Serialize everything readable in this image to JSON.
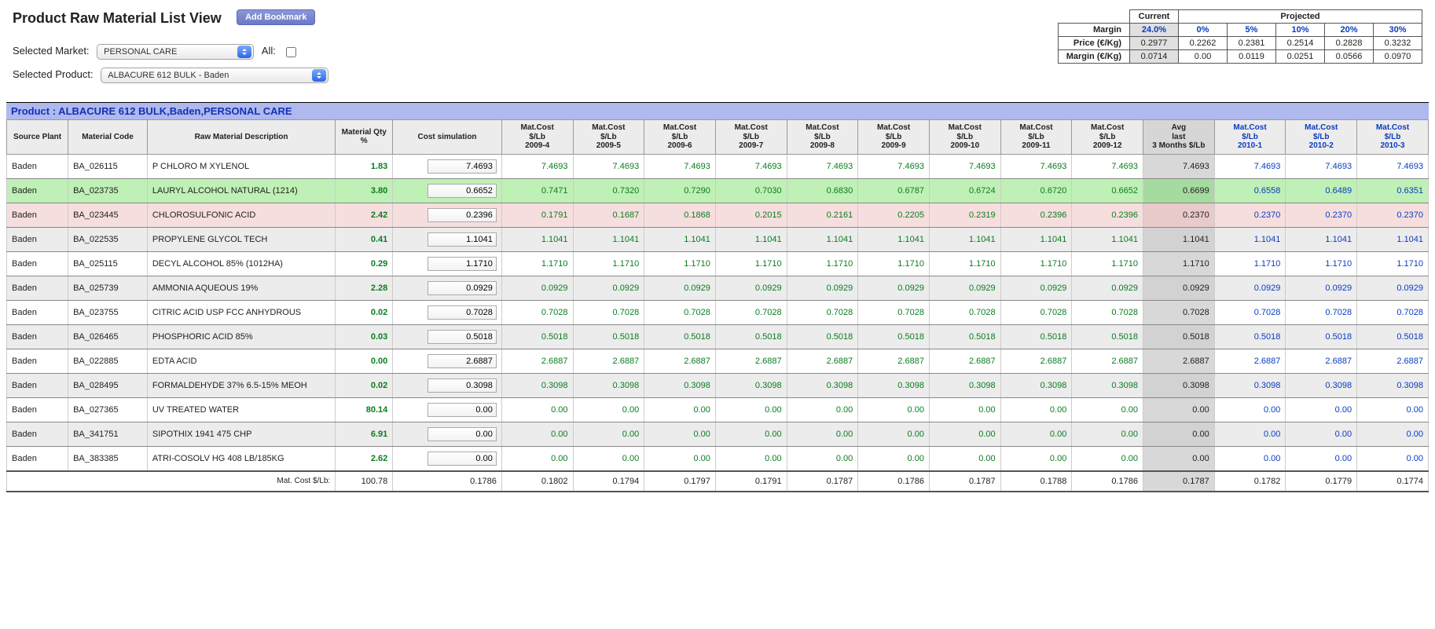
{
  "header": {
    "title": "Product Raw Material List View",
    "bookmark_label": "Add Bookmark",
    "market_label": "Selected Market:",
    "market_value": "PERSONAL CARE",
    "all_label": "All:",
    "all_checked": false,
    "product_label": "Selected Product:",
    "product_value": "ALBACURE 612 BULK - Baden"
  },
  "margin_table": {
    "current_label": "Current",
    "projected_label": "Projected",
    "rows": {
      "margin": {
        "label": "Margin",
        "current": "24.0%",
        "p0": "0%",
        "p5": "5%",
        "p10": "10%",
        "p20": "20%",
        "p30": "30%"
      },
      "price": {
        "label": "Price (€/Kg)",
        "current": "0.2977",
        "p0": "0.2262",
        "p5": "0.2381",
        "p10": "0.2514",
        "p20": "0.2828",
        "p30": "0.3232"
      },
      "margin_eur": {
        "label": "Margin (€/Kg)",
        "current": "0.0714",
        "p0": "0.00",
        "p5": "0.0119",
        "p10": "0.0251",
        "p20": "0.0566",
        "p30": "0.0970"
      }
    }
  },
  "product_banner": "Product : ALBACURE 612 BULK,Baden,PERSONAL CARE",
  "columns": {
    "plant": "Source Plant",
    "code": "Material Code",
    "desc": "Raw Material Description",
    "qty": "Material Qty %",
    "sim": "Cost simulation",
    "months": [
      "Mat.Cost $/Lb 2009-4",
      "Mat.Cost $/Lb 2009-5",
      "Mat.Cost $/Lb 2009-6",
      "Mat.Cost $/Lb 2009-7",
      "Mat.Cost $/Lb 2009-8",
      "Mat.Cost $/Lb 2009-9",
      "Mat.Cost $/Lb 2009-10",
      "Mat.Cost $/Lb 2009-11",
      "Mat.Cost $/Lb 2009-12"
    ],
    "avg": "Avg last 3 Months $/Lb",
    "future": [
      "Mat.Cost $/Lb 2010-1",
      "Mat.Cost $/Lb 2010-2",
      "Mat.Cost $/Lb 2010-3"
    ]
  },
  "rows": [
    {
      "plant": "Baden",
      "code": "BA_026115",
      "desc": "P CHLORO M XYLENOL",
      "qty": "1.83",
      "sim": "7.4693",
      "m": [
        "7.4693",
        "7.4693",
        "7.4693",
        "7.4693",
        "7.4693",
        "7.4693",
        "7.4693",
        "7.4693",
        "7.4693"
      ],
      "avg": "7.4693",
      "f": [
        "7.4693",
        "7.4693",
        "7.4693"
      ],
      "rowstyle": ""
    },
    {
      "plant": "Baden",
      "code": "BA_023735",
      "desc": "LAURYL ALCOHOL NATURAL (1214)",
      "qty": "3.80",
      "sim": "0.6652",
      "m": [
        "0.7471",
        "0.7320",
        "0.7290",
        "0.7030",
        "0.6830",
        "0.6787",
        "0.6724",
        "0.6720",
        "0.6652"
      ],
      "avg": "0.6699",
      "f": [
        "0.6558",
        "0.6489",
        "0.6351"
      ],
      "rowstyle": "hl-green"
    },
    {
      "plant": "Baden",
      "code": "BA_023445",
      "desc": "CHLOROSULFONIC ACID",
      "qty": "2.42",
      "sim": "0.2396",
      "m": [
        "0.1791",
        "0.1687",
        "0.1868",
        "0.2015",
        "0.2161",
        "0.2205",
        "0.2319",
        "0.2396",
        "0.2396"
      ],
      "avg": "0.2370",
      "f": [
        "0.2370",
        "0.2370",
        "0.2370"
      ],
      "rowstyle": "hl-pink"
    },
    {
      "plant": "Baden",
      "code": "BA_022535",
      "desc": "PROPYLENE GLYCOL TECH",
      "qty": "0.41",
      "sim": "1.1041",
      "m": [
        "1.1041",
        "1.1041",
        "1.1041",
        "1.1041",
        "1.1041",
        "1.1041",
        "1.1041",
        "1.1041",
        "1.1041"
      ],
      "avg": "1.1041",
      "f": [
        "1.1041",
        "1.1041",
        "1.1041"
      ],
      "rowstyle": "alt"
    },
    {
      "plant": "Baden",
      "code": "BA_025115",
      "desc": "DECYL ALCOHOL 85% (1012HA)",
      "qty": "0.29",
      "sim": "1.1710",
      "m": [
        "1.1710",
        "1.1710",
        "1.1710",
        "1.1710",
        "1.1710",
        "1.1710",
        "1.1710",
        "1.1710",
        "1.1710"
      ],
      "avg": "1.1710",
      "f": [
        "1.1710",
        "1.1710",
        "1.1710"
      ],
      "rowstyle": ""
    },
    {
      "plant": "Baden",
      "code": "BA_025739",
      "desc": "AMMONIA AQUEOUS 19%",
      "qty": "2.28",
      "sim": "0.0929",
      "m": [
        "0.0929",
        "0.0929",
        "0.0929",
        "0.0929",
        "0.0929",
        "0.0929",
        "0.0929",
        "0.0929",
        "0.0929"
      ],
      "avg": "0.0929",
      "f": [
        "0.0929",
        "0.0929",
        "0.0929"
      ],
      "rowstyle": "alt"
    },
    {
      "plant": "Baden",
      "code": "BA_023755",
      "desc": "CITRIC ACID USP FCC ANHYDROUS",
      "qty": "0.02",
      "sim": "0.7028",
      "m": [
        "0.7028",
        "0.7028",
        "0.7028",
        "0.7028",
        "0.7028",
        "0.7028",
        "0.7028",
        "0.7028",
        "0.7028"
      ],
      "avg": "0.7028",
      "f": [
        "0.7028",
        "0.7028",
        "0.7028"
      ],
      "rowstyle": ""
    },
    {
      "plant": "Baden",
      "code": "BA_026465",
      "desc": "PHOSPHORIC ACID 85%",
      "qty": "0.03",
      "sim": "0.5018",
      "m": [
        "0.5018",
        "0.5018",
        "0.5018",
        "0.5018",
        "0.5018",
        "0.5018",
        "0.5018",
        "0.5018",
        "0.5018"
      ],
      "avg": "0.5018",
      "f": [
        "0.5018",
        "0.5018",
        "0.5018"
      ],
      "rowstyle": "alt"
    },
    {
      "plant": "Baden",
      "code": "BA_022885",
      "desc": "EDTA ACID",
      "qty": "0.00",
      "sim": "2.6887",
      "m": [
        "2.6887",
        "2.6887",
        "2.6887",
        "2.6887",
        "2.6887",
        "2.6887",
        "2.6887",
        "2.6887",
        "2.6887"
      ],
      "avg": "2.6887",
      "f": [
        "2.6887",
        "2.6887",
        "2.6887"
      ],
      "rowstyle": ""
    },
    {
      "plant": "Baden",
      "code": "BA_028495",
      "desc": "FORMALDEHYDE 37% 6.5-15% MEOH",
      "qty": "0.02",
      "sim": "0.3098",
      "m": [
        "0.3098",
        "0.3098",
        "0.3098",
        "0.3098",
        "0.3098",
        "0.3098",
        "0.3098",
        "0.3098",
        "0.3098"
      ],
      "avg": "0.3098",
      "f": [
        "0.3098",
        "0.3098",
        "0.3098"
      ],
      "rowstyle": "alt"
    },
    {
      "plant": "Baden",
      "code": "BA_027365",
      "desc": "UV TREATED WATER",
      "qty": "80.14",
      "sim": "0.00",
      "m": [
        "0.00",
        "0.00",
        "0.00",
        "0.00",
        "0.00",
        "0.00",
        "0.00",
        "0.00",
        "0.00"
      ],
      "avg": "0.00",
      "f": [
        "0.00",
        "0.00",
        "0.00"
      ],
      "rowstyle": ""
    },
    {
      "plant": "Baden",
      "code": "BA_341751",
      "desc": "SIPOTHIX 1941 475 CHP",
      "qty": "6.91",
      "sim": "0.00",
      "m": [
        "0.00",
        "0.00",
        "0.00",
        "0.00",
        "0.00",
        "0.00",
        "0.00",
        "0.00",
        "0.00"
      ],
      "avg": "0.00",
      "f": [
        "0.00",
        "0.00",
        "0.00"
      ],
      "rowstyle": "alt"
    },
    {
      "plant": "Baden",
      "code": "BA_383385",
      "desc": "ATRI-COSOLV HG 408 LB/185KG",
      "qty": "2.62",
      "sim": "0.00",
      "m": [
        "0.00",
        "0.00",
        "0.00",
        "0.00",
        "0.00",
        "0.00",
        "0.00",
        "0.00",
        "0.00"
      ],
      "avg": "0.00",
      "f": [
        "0.00",
        "0.00",
        "0.00"
      ],
      "rowstyle": ""
    }
  ],
  "footer": {
    "label": "Mat. Cost $/Lb:",
    "qty_total": "100.78",
    "sim_total": "0.1786",
    "m": [
      "0.1802",
      "0.1794",
      "0.1797",
      "0.1791",
      "0.1787",
      "0.1786",
      "0.1787",
      "0.1788",
      "0.1786"
    ],
    "avg": "0.1787",
    "f": [
      "0.1782",
      "0.1779",
      "0.1774"
    ]
  },
  "style": {
    "green_text": "#0a7d1f",
    "blue_text": "#0a3cc2",
    "row_green": "#bff0b6",
    "row_pink": "#f7dede",
    "row_alt": "#ececec",
    "avg_bg": "#d8d8d8",
    "banner_bg": "#b0b9ee",
    "banner_fg": "#1431b3"
  }
}
